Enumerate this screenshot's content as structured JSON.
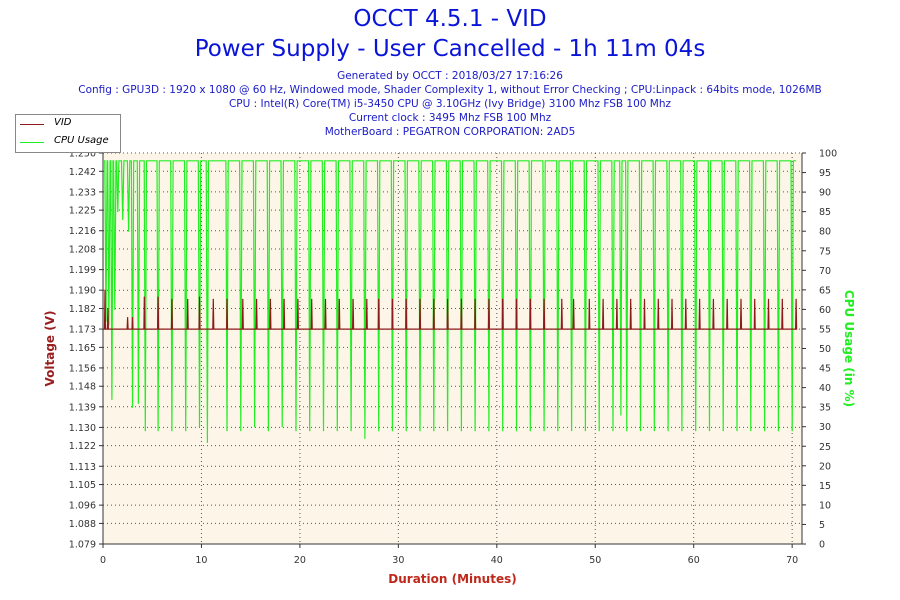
{
  "header": {
    "title": "OCCT 4.5.1 - VID",
    "subtitle": "Power Supply - User Cancelled - 1h 11m 04s",
    "lines": [
      "Generated by OCCT : 2018/03/27 17:16:26",
      "Config : GPU3D : 1920 x 1080 @ 60 Hz, Windowed mode, Shader Complexity 1, without Error Checking ; CPU:Linpack : 64bits mode, 1026MB",
      "CPU : Intel(R) Core(TM) i5-3450 CPU @ 3.10GHz (Ivy Bridge) 3100 Mhz FSB 100 Mhz",
      "Current clock : 3495 Mhz FSB 100 Mhz",
      "MotherBoard : PEGATRON CORPORATION: 2AD5"
    ]
  },
  "legend": {
    "vid_label": "VID",
    "cpu_label": "CPU Usage"
  },
  "colors": {
    "vid": "#8b1a1a",
    "cpu": "#22ee22",
    "title": "#0a14d8",
    "plot_bg": "#fdf6e8",
    "ylabel_left": "#9a2020",
    "ylabel_right": "#22ee22",
    "xlabel": "#c0281c"
  },
  "chart_data": {
    "type": "line",
    "xlabel": "Duration (Minutes)",
    "ylabel_left": "Voltage (V)",
    "ylabel_right": "CPU Usage (in %)",
    "xlim": [
      0,
      71
    ],
    "xticks": [
      0,
      10,
      20,
      30,
      40,
      50,
      60,
      70
    ],
    "ylim_left": [
      1.079,
      1.25
    ],
    "yticks_left": [
      "1.250",
      "1.242",
      "1.233",
      "1.225",
      "1.216",
      "1.208",
      "1.199",
      "1.190",
      "1.182",
      "1.173",
      "1.165",
      "1.156",
      "1.148",
      "1.139",
      "1.130",
      "1.122",
      "1.113",
      "1.105",
      "1.096",
      "1.088",
      "1.079"
    ],
    "ylim_right": [
      0,
      100
    ],
    "yticks_right": [
      0,
      5,
      10,
      15,
      20,
      25,
      30,
      35,
      40,
      45,
      50,
      55,
      60,
      65,
      70,
      75,
      80,
      85,
      90,
      95,
      100
    ],
    "grid": "dotted",
    "legend_position": "top-left",
    "series": [
      {
        "name": "VID",
        "axis": "left",
        "baseline": 1.173,
        "spikes": [
          [
            0.2,
            1.19
          ],
          [
            0.5,
            1.182
          ],
          [
            2.5,
            1.178
          ],
          [
            3,
            1.178
          ],
          [
            4.2,
            1.187
          ],
          [
            5.6,
            1.187
          ],
          [
            7.0,
            1.186
          ],
          [
            8.6,
            1.186
          ],
          [
            9.8,
            1.187
          ],
          [
            11.2,
            1.186
          ],
          [
            12.6,
            1.186
          ],
          [
            14.2,
            1.186
          ],
          [
            15.6,
            1.186
          ],
          [
            17.0,
            1.186
          ],
          [
            18.4,
            1.186
          ],
          [
            19.8,
            1.186
          ],
          [
            21.2,
            1.186
          ],
          [
            22.6,
            1.186
          ],
          [
            24.0,
            1.186
          ],
          [
            25.4,
            1.186
          ],
          [
            26.8,
            1.186
          ],
          [
            28.0,
            1.186
          ],
          [
            29.4,
            1.186
          ],
          [
            30.8,
            1.186
          ],
          [
            32.2,
            1.186
          ],
          [
            33.6,
            1.186
          ],
          [
            35.0,
            1.186
          ],
          [
            36.4,
            1.186
          ],
          [
            37.8,
            1.186
          ],
          [
            39.2,
            1.186
          ],
          [
            40.6,
            1.186
          ],
          [
            42.0,
            1.186
          ],
          [
            43.4,
            1.186
          ],
          [
            44.8,
            1.186
          ],
          [
            46.6,
            1.186
          ],
          [
            47.8,
            1.186
          ],
          [
            49.4,
            1.186
          ],
          [
            50.8,
            1.186
          ],
          [
            52.2,
            1.186
          ],
          [
            53.6,
            1.186
          ],
          [
            55.0,
            1.186
          ],
          [
            56.4,
            1.186
          ],
          [
            57.8,
            1.186
          ],
          [
            59.2,
            1.186
          ],
          [
            60.6,
            1.186
          ],
          [
            62.0,
            1.186
          ],
          [
            63.4,
            1.186
          ],
          [
            64.8,
            1.186
          ],
          [
            66.2,
            1.186
          ],
          [
            67.6,
            1.186
          ],
          [
            69.0,
            1.186
          ],
          [
            70.4,
            1.186
          ]
        ]
      },
      {
        "name": "CPU Usage",
        "axis": "right",
        "baseline": 98,
        "dips": [
          [
            0.3,
            57
          ],
          [
            0.6,
            56
          ],
          [
            0.9,
            37
          ],
          [
            1.2,
            60
          ],
          [
            1.5,
            85
          ],
          [
            2.0,
            83
          ],
          [
            2.6,
            80
          ],
          [
            3.0,
            35
          ],
          [
            3.6,
            36
          ],
          [
            4.3,
            29
          ],
          [
            5.6,
            29
          ],
          [
            7.0,
            29
          ],
          [
            8.4,
            29
          ],
          [
            9.8,
            30
          ],
          [
            10.6,
            26
          ],
          [
            12.6,
            29
          ],
          [
            14.0,
            29
          ],
          [
            15.4,
            30
          ],
          [
            16.8,
            29
          ],
          [
            18.2,
            30
          ],
          [
            19.6,
            29
          ],
          [
            21.0,
            29
          ],
          [
            22.4,
            29
          ],
          [
            23.8,
            29
          ],
          [
            25.2,
            29
          ],
          [
            26.6,
            27
          ],
          [
            28.0,
            29
          ],
          [
            29.4,
            29
          ],
          [
            30.8,
            29
          ],
          [
            32.2,
            29
          ],
          [
            33.6,
            29
          ],
          [
            35.0,
            29
          ],
          [
            36.4,
            29
          ],
          [
            37.8,
            29
          ],
          [
            39.2,
            29
          ],
          [
            40.6,
            29
          ],
          [
            42.0,
            29
          ],
          [
            43.4,
            29
          ],
          [
            44.8,
            29
          ],
          [
            46.2,
            29
          ],
          [
            47.6,
            29
          ],
          [
            49.0,
            29
          ],
          [
            50.4,
            29
          ],
          [
            51.8,
            29
          ],
          [
            52.6,
            33
          ],
          [
            53.2,
            29
          ],
          [
            54.6,
            29
          ],
          [
            56.0,
            29
          ],
          [
            57.4,
            29
          ],
          [
            58.8,
            29
          ],
          [
            60.2,
            29
          ],
          [
            61.6,
            29
          ],
          [
            63.0,
            29
          ],
          [
            64.4,
            29
          ],
          [
            65.8,
            29
          ],
          [
            67.2,
            29
          ],
          [
            68.6,
            29
          ],
          [
            70.0,
            29
          ]
        ]
      }
    ]
  }
}
